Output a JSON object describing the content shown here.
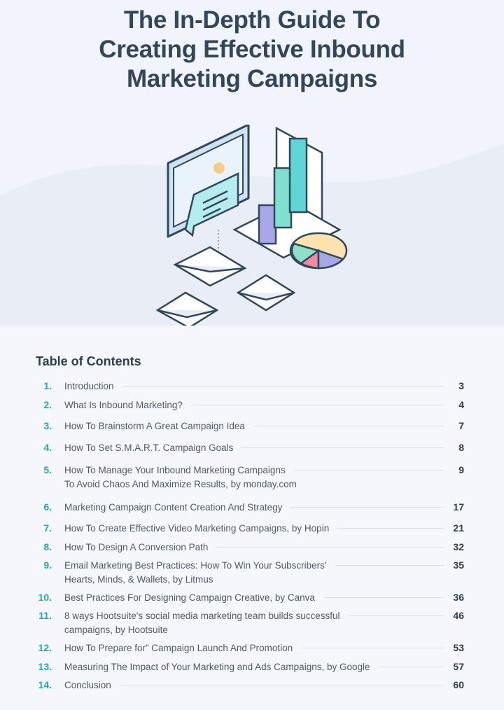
{
  "title": {
    "line1": "The In-Depth Guide To",
    "line2": "Creating Effective Inbound",
    "line3": "Marketing Campaigns"
  },
  "toc": {
    "heading": "Table of Contents",
    "entries": [
      {
        "num": "1.",
        "text": "Introduction",
        "page": "3"
      },
      {
        "num": "2.",
        "text": "What Is Inbound Marketing?",
        "page": "4"
      },
      {
        "num": "3.",
        "text": "How To Brainstorm A Great Campaign Idea",
        "page": "7"
      },
      {
        "num": "4.",
        "text": "How To Set S.M.A.R.T. Campaign Goals",
        "page": "8"
      },
      {
        "num": "5.",
        "text": "How To Manage Your Inbound Marketing Campaigns",
        "text2": "To Avoid Chaos And Maximize Results, by monday.com",
        "page": "9"
      },
      {
        "num": "6.",
        "text": "Marketing Campaign Content Creation And Strategy",
        "page": "17"
      },
      {
        "num": "7.",
        "text": "How To Create Effective Video Marketing Campaigns, by Hopin",
        "page": "21"
      },
      {
        "num": "8.",
        "text": "How To Design A Conversion Path",
        "page": "32"
      },
      {
        "num": "9.",
        "text": "Email Marketing Best Practices: How To Win Your Subscribers’",
        "text2": "Hearts, Minds, & Wallets, by Litmus",
        "page": "35"
      },
      {
        "num": "10.",
        "text": "Best Practices For Designing Campaign Creative, by Canva",
        "page": "36"
      },
      {
        "num": "11.",
        "text": "8 ways Hootsuite's social media marketing team builds successful",
        "text2": "campaigns, by Hootsuite",
        "page": "46"
      },
      {
        "num": "12.",
        "text": "How To Prepare for” Campaign Launch And Promotion",
        "page": "53"
      },
      {
        "num": "13.",
        "text": "Measuring The Impact of Your Marketing and Ads Campaigns, by Google",
        "page": "57"
      },
      {
        "num": "14.",
        "text": "Conclusion",
        "page": "60"
      }
    ]
  },
  "colors": {
    "accent": "#1fa8c4",
    "title": "#33475b"
  }
}
